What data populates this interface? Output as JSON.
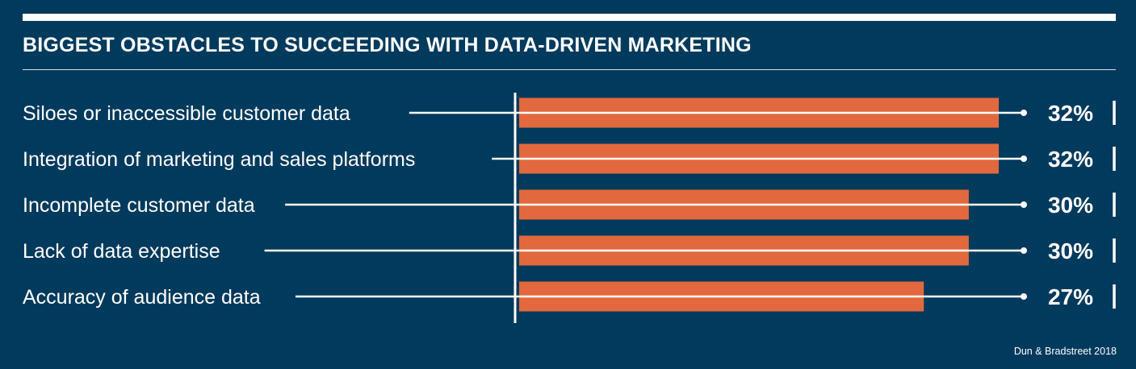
{
  "chart_data": {
    "type": "bar",
    "orientation": "horizontal",
    "title": "BIGGEST OBSTACLES TO SUCCEEDING WITH DATA-DRIVEN MARKETING",
    "categories": [
      "Siloes or inaccessible customer data",
      "Integration of marketing and sales platforms",
      "Incomplete customer data",
      "Lack of data expertise",
      "Accuracy of audience data"
    ],
    "values": [
      32,
      32,
      30,
      30,
      27
    ],
    "value_labels": [
      "32%",
      "32%",
      "30%",
      "30%",
      "27%"
    ],
    "unit": "%",
    "xlim": [
      0,
      32
    ],
    "grid": false,
    "legend": "none"
  },
  "source": "Dun & Bradstreet 2018",
  "colors": {
    "background": "#003A5C",
    "bar": "#E2693D",
    "text": "#FFFFFF"
  }
}
